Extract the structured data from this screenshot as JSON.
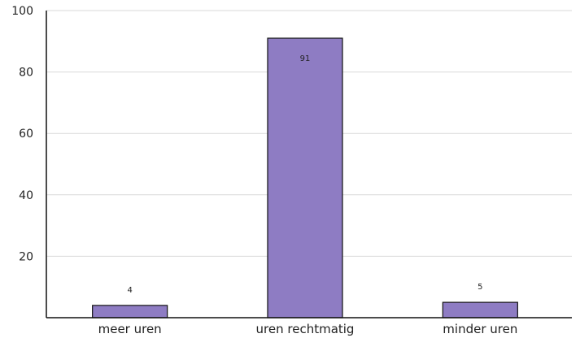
{
  "chart_data": {
    "type": "bar",
    "categories": [
      "meer uren",
      "uren rechtmatig",
      "minder uren"
    ],
    "values": [
      4,
      91,
      5
    ],
    "data_labels": [
      "4",
      "91",
      "5"
    ],
    "title": "",
    "xlabel": "",
    "ylabel": "",
    "ylim": [
      0,
      100
    ],
    "yticks": [
      20,
      40,
      60,
      80,
      100
    ],
    "grid": true,
    "legend": "none",
    "colors": {
      "bar": "#8e7cc3",
      "bar_border": "#111111",
      "grid": "#d9d9d9",
      "axis": "#111111"
    }
  }
}
